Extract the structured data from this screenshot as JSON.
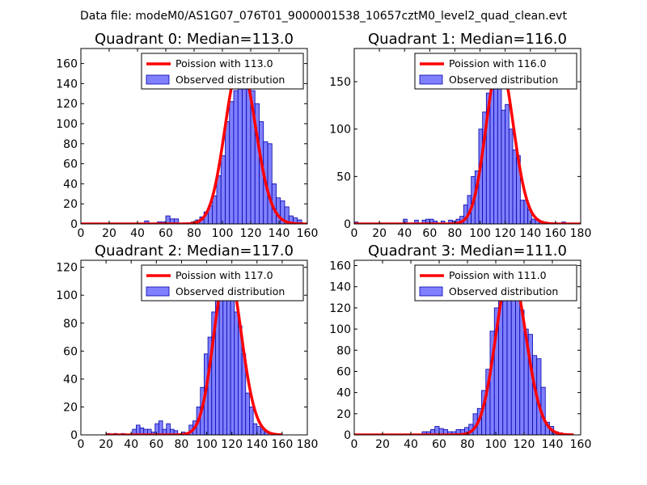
{
  "suptitle": "Data file: modeM0/AS1G07_076T01_9000001538_10657cztM0_level2_quad_clean.evt",
  "colors": {
    "hist_fill": "#8080ff",
    "hist_edge": "#0000aa",
    "poisson_line": "#ff0000"
  },
  "chart_data": [
    {
      "type": "bar+line",
      "title": "Quadrant 0: Median=113.0",
      "legend": [
        "Poission with 113.0",
        "Observed distribution"
      ],
      "legend_position": "top-right",
      "xlim": [
        0,
        160
      ],
      "ylim": [
        0,
        175
      ],
      "xticks": [
        "0",
        "20",
        "40",
        "60",
        "80",
        "100",
        "120",
        "140",
        "160"
      ],
      "yticks": [
        "0",
        "20",
        "40",
        "60",
        "80",
        "100",
        "120",
        "140",
        "160"
      ],
      "bin_edges": [
        42,
        45,
        48,
        51,
        54,
        57,
        60,
        63,
        66,
        69,
        72,
        75,
        78,
        81,
        84,
        87,
        90,
        93,
        96,
        99,
        102,
        105,
        108,
        111,
        114,
        117,
        120,
        123,
        126,
        129,
        132,
        135,
        138,
        141,
        144,
        147,
        150,
        153,
        156
      ],
      "counts": [
        0,
        3,
        0,
        0,
        2,
        2,
        8,
        5,
        5,
        0,
        0,
        1,
        2,
        4,
        7,
        12,
        18,
        28,
        48,
        68,
        102,
        122,
        133,
        142,
        166,
        153,
        133,
        120,
        102,
        82,
        80,
        40,
        26,
        23,
        17,
        8,
        6,
        4
      ],
      "poisson_mean": 113.0,
      "poisson_scale": 4300,
      "poisson_xrange": [
        0,
        160
      ]
    },
    {
      "type": "bar+line",
      "title": "Quadrant 1: Median=116.0",
      "legend": [
        "Poission with 116.0",
        "Observed distribution"
      ],
      "legend_position": "top-right",
      "xlim": [
        0,
        180
      ],
      "ylim": [
        0,
        185
      ],
      "xticks": [
        "0",
        "20",
        "40",
        "60",
        "80",
        "100",
        "120",
        "140",
        "160",
        "180"
      ],
      "yticks": [
        "0",
        "50",
        "100",
        "150"
      ],
      "bin_edges": [
        0,
        3,
        39,
        42,
        45,
        48,
        51,
        54,
        57,
        60,
        63,
        66,
        69,
        72,
        75,
        78,
        81,
        84,
        87,
        90,
        93,
        96,
        99,
        102,
        105,
        108,
        111,
        114,
        117,
        120,
        123,
        126,
        129,
        132,
        135,
        138,
        141,
        144,
        147,
        150,
        153,
        156,
        159,
        162,
        165,
        168,
        171
      ],
      "counts": [
        2,
        0,
        5,
        0,
        0,
        4,
        0,
        4,
        5,
        5,
        3,
        0,
        3,
        0,
        4,
        3,
        5,
        8,
        20,
        30,
        50,
        56,
        100,
        118,
        138,
        168,
        148,
        158,
        120,
        126,
        100,
        78,
        72,
        25,
        25,
        15,
        5,
        5,
        3,
        2,
        0,
        0,
        0,
        0,
        2,
        0
      ],
      "poisson_mean": 116.0,
      "poisson_scale": 4640,
      "poisson_xrange": [
        0,
        180
      ]
    },
    {
      "type": "bar+line",
      "title": "Quadrant 2: Median=117.0",
      "legend": [
        "Poission with 117.0",
        "Observed distribution"
      ],
      "legend_position": "top-right",
      "xlim": [
        0,
        180
      ],
      "ylim": [
        0,
        125
      ],
      "xticks": [
        "0",
        "20",
        "40",
        "60",
        "80",
        "100",
        "120",
        "140",
        "160",
        "180"
      ],
      "yticks": [
        "0",
        "20",
        "40",
        "60",
        "80",
        "100",
        "120"
      ],
      "bin_edges": [
        20,
        23,
        26,
        29,
        32,
        35,
        38,
        41,
        44,
        47,
        50,
        53,
        56,
        59,
        62,
        65,
        68,
        71,
        74,
        77,
        80,
        83,
        86,
        89,
        92,
        95,
        98,
        101,
        104,
        107,
        110,
        113,
        116,
        119,
        122,
        125,
        128,
        131,
        134,
        137,
        140,
        143,
        146,
        149,
        152,
        155,
        158,
        161
      ],
      "counts": [
        1,
        0,
        1,
        0,
        1,
        0,
        0,
        4,
        7,
        5,
        4,
        4,
        2,
        8,
        10,
        4,
        8,
        4,
        3,
        0,
        2,
        1,
        7,
        10,
        20,
        34,
        58,
        70,
        88,
        100,
        118,
        112,
        108,
        104,
        88,
        78,
        58,
        30,
        20,
        8,
        6,
        4,
        2,
        0,
        0,
        0,
        0
      ],
      "poisson_mean": 117.0,
      "poisson_scale": 3250,
      "poisson_xrange": [
        20,
        160
      ]
    },
    {
      "type": "bar+line",
      "title": "Quadrant 3: Median=111.0",
      "legend": [
        "Poission with 111.0",
        "Observed distribution"
      ],
      "legend_position": "top-right",
      "xlim": [
        0,
        160
      ],
      "ylim": [
        0,
        165
      ],
      "xticks": [
        "0",
        "20",
        "40",
        "60",
        "80",
        "100",
        "120",
        "140",
        "160"
      ],
      "yticks": [
        "0",
        "20",
        "40",
        "60",
        "80",
        "100",
        "120",
        "140",
        "160"
      ],
      "bin_edges": [
        48,
        51,
        54,
        57,
        60,
        63,
        66,
        69,
        72,
        75,
        78,
        81,
        84,
        87,
        90,
        93,
        96,
        99,
        102,
        105,
        108,
        111,
        114,
        117,
        120,
        123,
        126,
        129,
        132,
        135,
        138,
        141,
        144,
        147,
        150,
        153,
        156
      ],
      "counts": [
        3,
        3,
        5,
        8,
        6,
        5,
        3,
        3,
        5,
        5,
        7,
        10,
        20,
        25,
        42,
        62,
        98,
        120,
        130,
        148,
        155,
        150,
        132,
        118,
        100,
        95,
        75,
        72,
        45,
        12,
        8,
        3,
        2,
        1,
        0,
        0
      ],
      "poisson_mean": 111.0,
      "poisson_scale": 4130,
      "poisson_xrange": [
        0,
        155
      ]
    }
  ]
}
